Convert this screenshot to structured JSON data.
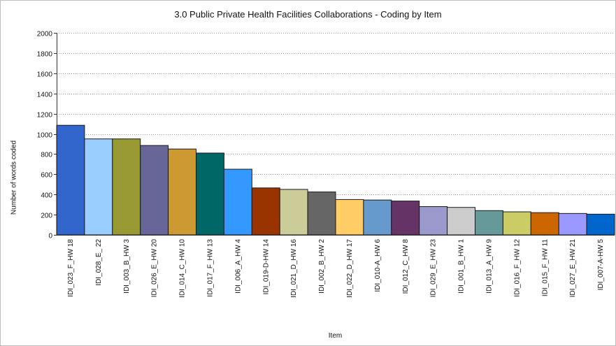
{
  "chart_data": {
    "type": "bar",
    "title": "3.0 Public Private Health Facilities Collaborations - Coding by Item",
    "xlabel": "Item",
    "ylabel": "Number of words coded",
    "ylim": [
      0,
      2000
    ],
    "yticks": [
      0,
      200,
      400,
      600,
      800,
      1000,
      1200,
      1400,
      1600,
      1800,
      2000
    ],
    "grid": true,
    "categories": [
      "IDI_023_F_HW 18",
      "IDI_028_E_ 22",
      "IDI_003_B_HW 3",
      "IDI_026_E_HW 20",
      "IDI_014_C_HW 10",
      "IDI_017_F_HW 13",
      "IDI_006_A_HW 4",
      "IDI_019-D-HW 14",
      "IDI_021_D_HW 16",
      "IDI_002_B_HW 2",
      "IDI_022_D_HW 17",
      "IDI_010-A_HW 6",
      "IDI_012_C_HW 8",
      "IDI_029_E_HW 23",
      "IDI_001_B_HW 1",
      "IDI_013_A_HW 9",
      "IDI_016_F_HW 12",
      "IDI_015_F_HW 11",
      "IDI_027_E_HW 21",
      "IDI_007-A-HW 5"
    ],
    "values": [
      1085,
      950,
      950,
      885,
      850,
      810,
      650,
      465,
      450,
      425,
      350,
      345,
      335,
      280,
      272,
      240,
      228,
      220,
      212,
      205
    ],
    "colors": [
      "#3366cc",
      "#99ccff",
      "#999933",
      "#666699",
      "#cc9933",
      "#006666",
      "#3399ff",
      "#993300",
      "#cccc99",
      "#666666",
      "#ffcc66",
      "#6699cc",
      "#663366",
      "#9999cc",
      "#cccccc",
      "#669999",
      "#cccc66",
      "#cc6600",
      "#9999ff",
      "#0066cc"
    ]
  }
}
